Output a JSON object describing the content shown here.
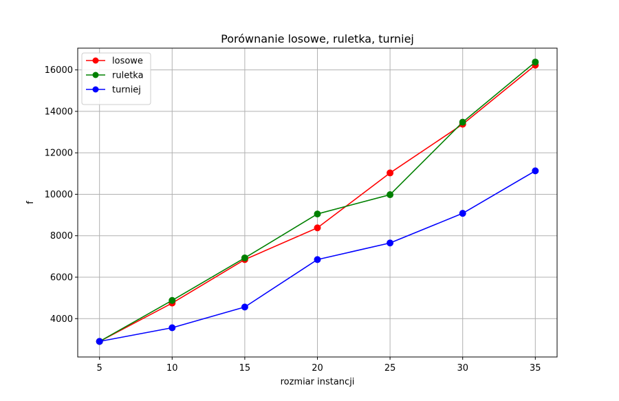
{
  "chart_data": {
    "type": "line",
    "title": "Porównanie losowe, ruletka, turniej",
    "xlabel": "rozmiar instancji",
    "ylabel": "f",
    "x": [
      5,
      10,
      15,
      20,
      25,
      30,
      35
    ],
    "xticks": [
      "5",
      "10",
      "15",
      "20",
      "25",
      "30",
      "35"
    ],
    "yticks": [
      "4000",
      "6000",
      "8000",
      "10000",
      "12000",
      "14000",
      "16000"
    ],
    "xlim": [
      3.5,
      36.5
    ],
    "ylim": [
      2150,
      17050
    ],
    "grid": true,
    "legend_position": "top-left",
    "series": [
      {
        "name": "losowe",
        "color": "#ff0000",
        "marker": "circle",
        "values": [
          2900,
          4750,
          6850,
          8380,
          11030,
          13380,
          16230
        ]
      },
      {
        "name": "ruletka",
        "color": "#008000",
        "marker": "circle",
        "values": [
          2900,
          4880,
          6930,
          9050,
          9980,
          13480,
          16380
        ]
      },
      {
        "name": "turniej",
        "color": "#0000ff",
        "marker": "circle",
        "values": [
          2900,
          3560,
          4560,
          6850,
          7650,
          9080,
          11130
        ]
      }
    ]
  }
}
